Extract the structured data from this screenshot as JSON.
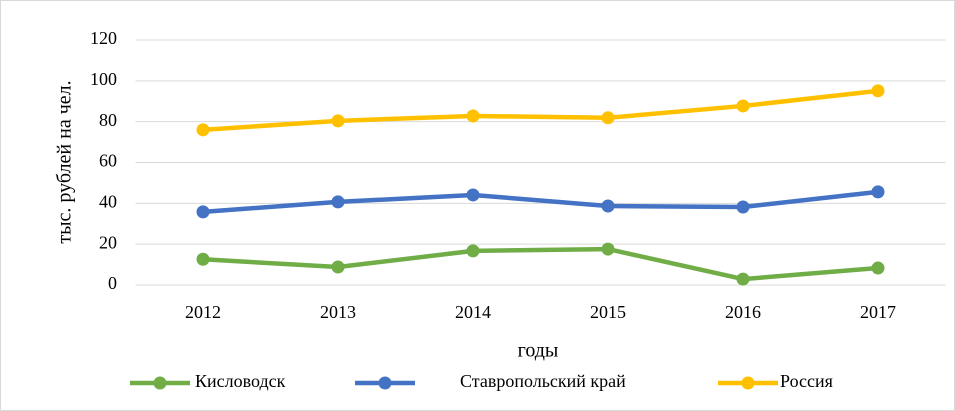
{
  "chart_data": {
    "type": "line",
    "y_label": "тыс. рублей на чел.",
    "x_label": "годы",
    "categories": [
      "2012",
      "2013",
      "2014",
      "2015",
      "2016",
      "2017"
    ],
    "series": [
      {
        "name": "Кисловодск",
        "color": "#70ad47",
        "values": [
          12.6,
          8.8,
          16.7,
          17.6,
          2.9,
          8.3
        ]
      },
      {
        "name": "Ставропольский край",
        "color": "#4472c4",
        "values": [
          35.8,
          40.7,
          44.1,
          38.7,
          38.2,
          45.6
        ]
      },
      {
        "name": "Россия",
        "color": "#ffc000",
        "values": [
          76.0,
          80.4,
          82.8,
          81.9,
          87.7,
          95.1
        ]
      }
    ],
    "ylim": [
      0,
      120
    ],
    "yticks": [
      0,
      20,
      40,
      60,
      80,
      100,
      120
    ],
    "grid": true,
    "legend": "bottom"
  }
}
